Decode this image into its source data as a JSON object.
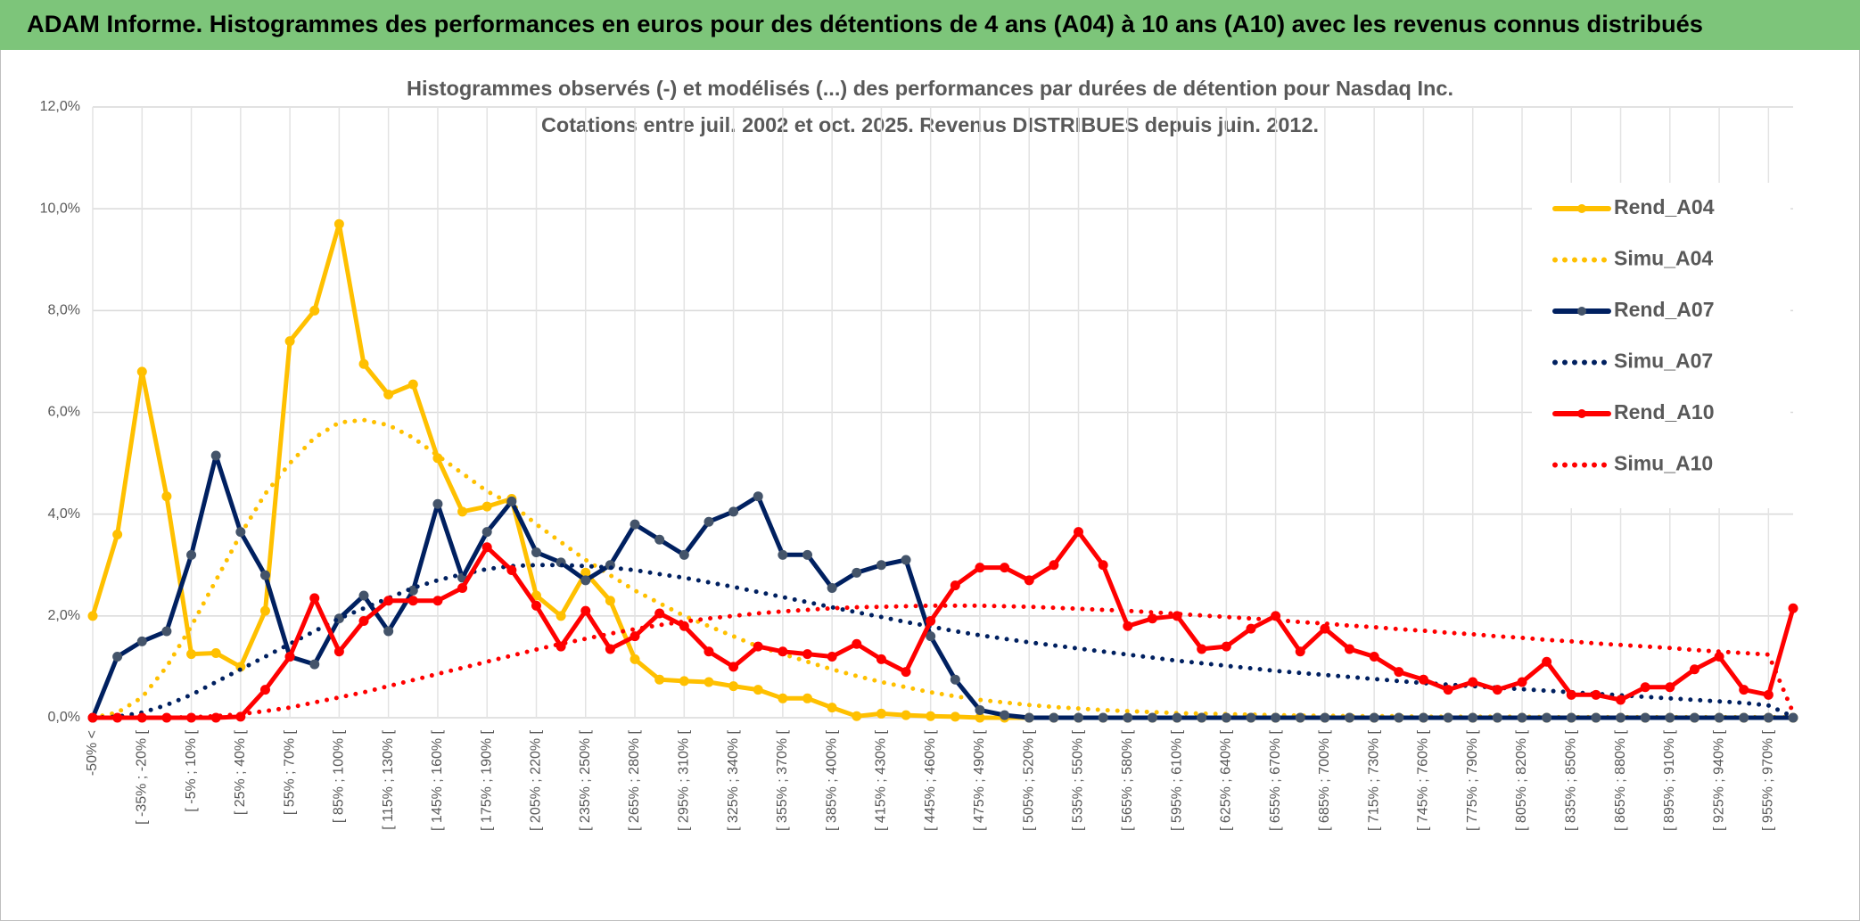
{
  "header": {
    "title": "ADAM Informe. Histogrammes des performances en euros pour des détentions de 4 ans (A04) à 10 ans (A10) avec les revenus connus distribués"
  },
  "chart_data": {
    "type": "line",
    "title": "Histogrammes observés (-) et modélisés (...) des performances par durées de détention pour Nasdaq Inc.",
    "subtitle": "Cotations entre juil. 2002 et oct. 2025. Revenus DISTRIBUES depuis juin. 2012.",
    "categories": [
      "-50% <",
      null,
      "[ -35% ; -20% [",
      null,
      "[ -5% ; 10% [",
      null,
      "[ 25% ; 40% [",
      null,
      "[ 55% ; 70% [",
      null,
      "[ 85% ; 100% [",
      null,
      "[ 115% ; 130% [",
      null,
      "[ 145% ; 160% [",
      null,
      "[ 175% ; 190% [",
      null,
      "[ 205% ; 220% [",
      null,
      "[ 235% ; 250% [",
      null,
      "[ 265% ; 280% [",
      null,
      "[ 295% ; 310% [",
      null,
      "[ 325% ; 340% [",
      null,
      "[ 355% ; 370% [",
      null,
      "[ 385% ; 400% [",
      null,
      "[ 415% ; 430% [",
      null,
      "[ 445% ; 460% [",
      null,
      "[ 475% ; 490% [",
      null,
      "[ 505% ; 520% [",
      null,
      "[ 535% ; 550% [",
      null,
      "[ 565% ; 580% [",
      null,
      "[ 595% ; 610% [",
      null,
      "[ 625% ; 640% [",
      null,
      "[ 655% ; 670% [",
      null,
      "[ 685% ; 700% [",
      null,
      "[ 715% ; 730% [",
      null,
      "[ 745% ; 760% [",
      null,
      "[ 775% ; 790% [",
      null,
      "[ 805% ; 820% [",
      null,
      "[ 835% ; 850% [",
      null,
      "[ 865% ; 880% [",
      null,
      "[ 895% ; 910% [",
      null,
      "[ 925% ; 940% [",
      null,
      "[ 955% ; 970% [",
      null
    ],
    "ylim": [
      0,
      12
    ],
    "yticks": [
      {
        "value": 0,
        "label": "0,0%"
      },
      {
        "value": 2,
        "label": "2,0%"
      },
      {
        "value": 4,
        "label": "4,0%"
      },
      {
        "value": 6,
        "label": "6,0%"
      },
      {
        "value": 8,
        "label": "8,0%"
      },
      {
        "value": 10,
        "label": "10,0%"
      },
      {
        "value": 12,
        "label": "12,0%"
      }
    ],
    "grid": true,
    "legend": "right",
    "series": [
      {
        "name": "Rend_A04",
        "color": "#FFC000",
        "style": "solid",
        "marker": true,
        "values": [
          2.0,
          3.6,
          6.8,
          4.35,
          1.25,
          1.27,
          1.0,
          2.1,
          7.4,
          8.0,
          9.7,
          6.95,
          6.35,
          6.55,
          5.1,
          4.05,
          4.15,
          4.3,
          2.4,
          2.0,
          2.85,
          2.3,
          1.15,
          0.75,
          0.72,
          0.7,
          0.62,
          0.55,
          0.38,
          0.38,
          0.2,
          0.03,
          0.08,
          0.05,
          0.03,
          0.02,
          0,
          0,
          0,
          0,
          0,
          0,
          0,
          0,
          0,
          0,
          0,
          0,
          0,
          0,
          0,
          0,
          0,
          0,
          0,
          0,
          0,
          0,
          0,
          0,
          0,
          0,
          0,
          0,
          0,
          0,
          0,
          0,
          0,
          0
        ]
      },
      {
        "name": "Simu_A04",
        "color": "#FFC000",
        "style": "dotted",
        "marker": false,
        "values": [
          0,
          0.1,
          0.4,
          1.0,
          1.8,
          2.7,
          3.6,
          4.4,
          5.0,
          5.5,
          5.8,
          5.85,
          5.75,
          5.5,
          5.15,
          4.8,
          4.45,
          4.2,
          3.8,
          3.45,
          3.1,
          2.8,
          2.5,
          2.25,
          2.0,
          1.8,
          1.6,
          1.4,
          1.25,
          1.1,
          0.95,
          0.82,
          0.7,
          0.6,
          0.5,
          0.42,
          0.35,
          0.3,
          0.25,
          0.21,
          0.18,
          0.15,
          0.13,
          0.11,
          0.09,
          0.08,
          0.07,
          0.06,
          0.05,
          0.04,
          0.04,
          0.03,
          0.03,
          0.03,
          0.02,
          0.02,
          0.02,
          0.02,
          0.02,
          0.01,
          0.01,
          0.01,
          0.01,
          0.01,
          0.01,
          0.01,
          0.01,
          0.01,
          0.01,
          0.01
        ]
      },
      {
        "name": "Rend_A07",
        "color": "#002060",
        "style": "solid",
        "marker": true,
        "marker_color": "#44546A",
        "values": [
          0,
          1.2,
          1.5,
          1.7,
          3.2,
          5.15,
          3.65,
          2.8,
          1.2,
          1.05,
          1.95,
          2.4,
          1.7,
          2.5,
          4.2,
          2.75,
          3.65,
          4.25,
          3.25,
          3.05,
          2.7,
          3.0,
          3.8,
          3.5,
          3.2,
          3.85,
          4.05,
          4.35,
          3.2,
          3.2,
          2.55,
          2.85,
          3.0,
          3.1,
          1.6,
          0.75,
          0.15,
          0.05,
          0,
          0,
          0,
          0,
          0,
          0,
          0,
          0,
          0,
          0,
          0,
          0,
          0,
          0,
          0,
          0,
          0,
          0,
          0,
          0,
          0,
          0,
          0,
          0,
          0,
          0,
          0,
          0,
          0,
          0,
          0,
          0
        ]
      },
      {
        "name": "Simu_A07",
        "color": "#002060",
        "style": "dotted",
        "marker": false,
        "values": [
          0,
          0.02,
          0.1,
          0.25,
          0.45,
          0.7,
          0.95,
          1.2,
          1.45,
          1.7,
          1.95,
          2.15,
          2.35,
          2.55,
          2.7,
          2.82,
          2.92,
          2.98,
          3.0,
          3.0,
          2.98,
          2.95,
          2.9,
          2.82,
          2.75,
          2.66,
          2.57,
          2.47,
          2.37,
          2.27,
          2.17,
          2.07,
          1.98,
          1.88,
          1.79,
          1.7,
          1.62,
          1.55,
          1.48,
          1.42,
          1.36,
          1.3,
          1.24,
          1.18,
          1.12,
          1.07,
          1.02,
          0.97,
          0.92,
          0.88,
          0.84,
          0.8,
          0.76,
          0.72,
          0.68,
          0.65,
          0.62,
          0.59,
          0.56,
          0.53,
          0.5,
          0.47,
          0.44,
          0.41,
          0.38,
          0.35,
          0.32,
          0.29,
          0.24,
          0.02
        ]
      },
      {
        "name": "Rend_A10",
        "color": "#FF0000",
        "style": "solid",
        "marker": true,
        "values": [
          0,
          0,
          0,
          0,
          0,
          0,
          0.02,
          0.55,
          1.2,
          2.35,
          1.3,
          1.9,
          2.3,
          2.3,
          2.3,
          2.55,
          3.35,
          2.9,
          2.2,
          1.4,
          2.1,
          1.35,
          1.6,
          2.05,
          1.8,
          1.3,
          1.0,
          1.4,
          1.3,
          1.25,
          1.2,
          1.45,
          1.15,
          0.9,
          1.9,
          2.6,
          2.95,
          2.95,
          2.7,
          3.0,
          3.65,
          3.0,
          1.8,
          1.95,
          2.0,
          1.35,
          1.4,
          1.75,
          2.0,
          1.3,
          1.75,
          1.35,
          1.2,
          0.9,
          0.75,
          0.55,
          0.7,
          0.55,
          0.7,
          1.1,
          0.45,
          0.45,
          0.35,
          0.6,
          0.6,
          0.95,
          1.2,
          0.55,
          0.45,
          2.15
        ]
      },
      {
        "name": "Simu_A10",
        "color": "#FF0000",
        "style": "dotted",
        "marker": false,
        "values": [
          0,
          0,
          0,
          0,
          0.01,
          0.03,
          0.07,
          0.13,
          0.2,
          0.3,
          0.4,
          0.5,
          0.62,
          0.74,
          0.86,
          0.98,
          1.1,
          1.22,
          1.34,
          1.45,
          1.55,
          1.65,
          1.74,
          1.82,
          1.89,
          1.95,
          2.0,
          2.05,
          2.09,
          2.12,
          2.15,
          2.17,
          2.18,
          2.19,
          2.2,
          2.2,
          2.2,
          2.19,
          2.18,
          2.16,
          2.14,
          2.12,
          2.1,
          2.07,
          2.04,
          2.01,
          1.98,
          1.95,
          1.92,
          1.88,
          1.85,
          1.81,
          1.78,
          1.74,
          1.71,
          1.67,
          1.64,
          1.6,
          1.57,
          1.53,
          1.5,
          1.46,
          1.43,
          1.4,
          1.37,
          1.33,
          1.3,
          1.27,
          1.24,
          0.1
        ]
      }
    ]
  }
}
